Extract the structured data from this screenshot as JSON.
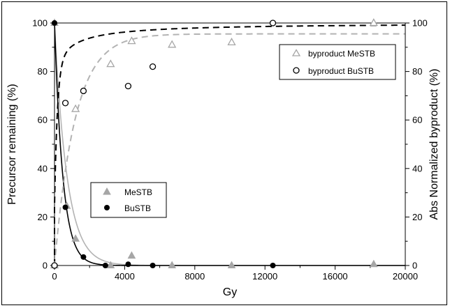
{
  "chart_data": {
    "type": "scatter",
    "xlabel": "Gy",
    "ylabel_left": "Precursor remaining (%)",
    "ylabel_right": "Abs Normalized byproduct (%)",
    "xlim": [
      0,
      20000
    ],
    "ylim_left": [
      0,
      100
    ],
    "ylim_right": [
      0,
      100
    ],
    "x_ticks": [
      0,
      4000,
      8000,
      12000,
      16000,
      20000
    ],
    "y_ticks": [
      0,
      20,
      40,
      60,
      80,
      100
    ],
    "grid": false,
    "legend_top": {
      "placement": "top-right",
      "entries": [
        "byproduct MeSTB",
        "byproduct BuSTB"
      ]
    },
    "legend_bottom": {
      "placement": "lower-left",
      "entries": [
        "MeSTB",
        "BuSTB"
      ]
    },
    "series": [
      {
        "name": "MeSTB",
        "marker": "triangle-filled",
        "axis": "left",
        "color": "#a6a6a6",
        "points": [
          [
            0,
            100
          ],
          [
            700,
            24.5
          ],
          [
            1200,
            11
          ],
          [
            3200,
            0
          ],
          [
            4400,
            4
          ],
          [
            6700,
            0
          ],
          [
            10100,
            0
          ],
          [
            18200,
            0.5
          ]
        ]
      },
      {
        "name": "BuSTB",
        "marker": "circle-filled",
        "axis": "left",
        "color": "#000000",
        "points": [
          [
            0,
            100
          ],
          [
            620,
            24
          ],
          [
            1650,
            3.5
          ],
          [
            2900,
            0
          ],
          [
            4200,
            0.5
          ],
          [
            5600,
            0
          ],
          [
            12450,
            0
          ]
        ]
      },
      {
        "name": "byproduct MeSTB",
        "marker": "triangle-open",
        "axis": "right",
        "color": "#a6a6a6",
        "points": [
          [
            0,
            0
          ],
          [
            1200,
            64.5
          ],
          [
            3200,
            83
          ],
          [
            4400,
            92.5
          ],
          [
            6700,
            91
          ],
          [
            10100,
            92
          ],
          [
            18200,
            100
          ]
        ]
      },
      {
        "name": "byproduct BuSTB",
        "marker": "circle-open",
        "axis": "right",
        "color": "#000000",
        "points": [
          [
            0,
            0
          ],
          [
            620,
            67
          ],
          [
            1650,
            72
          ],
          [
            4200,
            74
          ],
          [
            5600,
            82
          ],
          [
            12450,
            100
          ]
        ]
      }
    ],
    "fits": [
      {
        "series": "MeSTB",
        "axis": "left",
        "style": "solid",
        "color": "#b3b3b3",
        "model": "exp_decay",
        "a": 100,
        "k": 0.0014
      },
      {
        "series": "BuSTB",
        "axis": "left",
        "style": "solid",
        "color": "#000000",
        "model": "exp_decay",
        "a": 100,
        "k": 0.0021
      },
      {
        "series": "byproduct MeSTB",
        "axis": "right",
        "style": "dashed",
        "color": "#b3b3b3",
        "model": "exp_rise",
        "a": 95.5,
        "k": 0.00085
      },
      {
        "series": "byproduct BuSTB",
        "axis": "right",
        "style": "dashed",
        "color": "#000000",
        "model": "rise_hyper",
        "y0": 24,
        "a": 57,
        "k1": 0.0062,
        "b": 0.00102
      }
    ]
  }
}
